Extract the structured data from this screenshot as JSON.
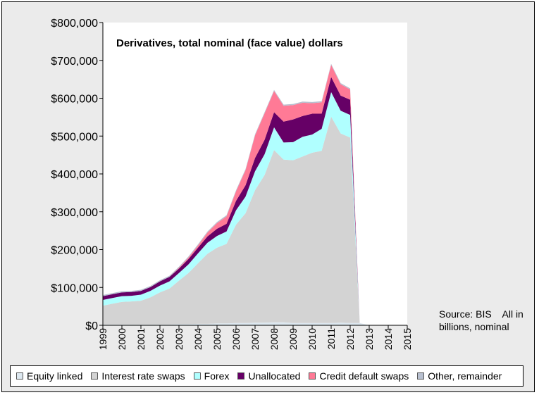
{
  "chart_data": {
    "type": "area",
    "stacked": true,
    "title": "Derivatives, total nominal (face value) dollars",
    "xlabel": "",
    "ylabel": "",
    "xlim": [
      1999,
      2015
    ],
    "ylim": [
      0,
      800000
    ],
    "grid": false,
    "legend_position": "bottom",
    "y_ticks": [
      "$0",
      "$100,000",
      "$200,000",
      "$300,000",
      "$400,000",
      "$500,000",
      "$600,000",
      "$700,000",
      "$800,000"
    ],
    "x_ticks": [
      "1999",
      "2000",
      "2001",
      "2002",
      "2003",
      "2004",
      "2005",
      "2006",
      "2007",
      "2008",
      "2009",
      "2010",
      "2011",
      "2012",
      "2013",
      "2014",
      "2015"
    ],
    "x": [
      1999.0,
      1999.5,
      2000.0,
      2000.5,
      2001.0,
      2001.5,
      2002.0,
      2002.5,
      2003.0,
      2003.5,
      2004.0,
      2004.5,
      2005.0,
      2005.5,
      2006.0,
      2006.5,
      2007.0,
      2007.5,
      2008.0,
      2008.5,
      2009.0,
      2009.5,
      2010.0,
      2010.5,
      2011.0,
      2011.5,
      2012.0,
      2012.5,
      2013.0,
      2013.5,
      2014.0,
      2014.5,
      2015.0
    ],
    "series": [
      {
        "name": "Equity linked",
        "color": "#dde8f0",
        "values": [
          2000,
          2000,
          2000,
          2000,
          2000,
          2000,
          2000,
          2000,
          3000,
          3000,
          4000,
          4000,
          5000,
          5000,
          6000,
          6000,
          7000,
          7000,
          8000,
          8000,
          6000,
          6000,
          6000,
          6000,
          6000,
          7000,
          6000,
          6000,
          0,
          0,
          0,
          0,
          0
        ]
      },
      {
        "name": "Interest rate swaps",
        "color": "#d3d3d3",
        "values": [
          50000,
          55000,
          60000,
          61000,
          63000,
          72000,
          85000,
          95000,
          115000,
          135000,
          160000,
          185000,
          200000,
          210000,
          260000,
          290000,
          350000,
          390000,
          455000,
          430000,
          430000,
          440000,
          450000,
          455000,
          545000,
          500000,
          490000,
          0,
          0,
          0,
          0,
          0,
          0
        ]
      },
      {
        "name": "Forex",
        "color": "#b0ffff",
        "values": [
          15000,
          15000,
          15000,
          15000,
          16000,
          17000,
          18000,
          19000,
          20000,
          23000,
          26000,
          29000,
          31000,
          33000,
          38000,
          44000,
          50000,
          55000,
          60000,
          45000,
          48000,
          52000,
          48000,
          58000,
          65000,
          60000,
          60000,
          0,
          0,
          0,
          0,
          0,
          0
        ]
      },
      {
        "name": "Unallocated",
        "color": "#660066",
        "values": [
          10000,
          10000,
          10000,
          10000,
          10000,
          10000,
          11000,
          12000,
          12000,
          14000,
          15000,
          17000,
          19000,
          20000,
          25000,
          30000,
          35000,
          38000,
          40000,
          55000,
          60000,
          55000,
          55000,
          40000,
          40000,
          40000,
          40000,
          0,
          0,
          0,
          0,
          0,
          0
        ]
      },
      {
        "name": "Credit default swaps",
        "color": "#ff7a96",
        "values": [
          0,
          0,
          0,
          0,
          0,
          0,
          0,
          0,
          2000,
          4000,
          6000,
          10000,
          15000,
          20000,
          25000,
          40000,
          60000,
          70000,
          56000,
          42000,
          38000,
          35000,
          28000,
          30000,
          32000,
          30000,
          27000,
          0,
          0,
          0,
          0,
          0,
          0
        ]
      },
      {
        "name": "Other, remainder",
        "color": "#b8c0d0",
        "values": [
          3000,
          3000,
          3000,
          3000,
          3000,
          3000,
          3000,
          3000,
          3000,
          3000,
          3000,
          3000,
          3000,
          3000,
          3000,
          3000,
          3000,
          3000,
          3000,
          3000,
          3000,
          3000,
          3000,
          3000,
          3000,
          3000,
          3000,
          0,
          0,
          0,
          0,
          0,
          0
        ]
      }
    ]
  },
  "source_note": {
    "line1": "Source: BIS    All in",
    "line2": "billions, nominal"
  }
}
